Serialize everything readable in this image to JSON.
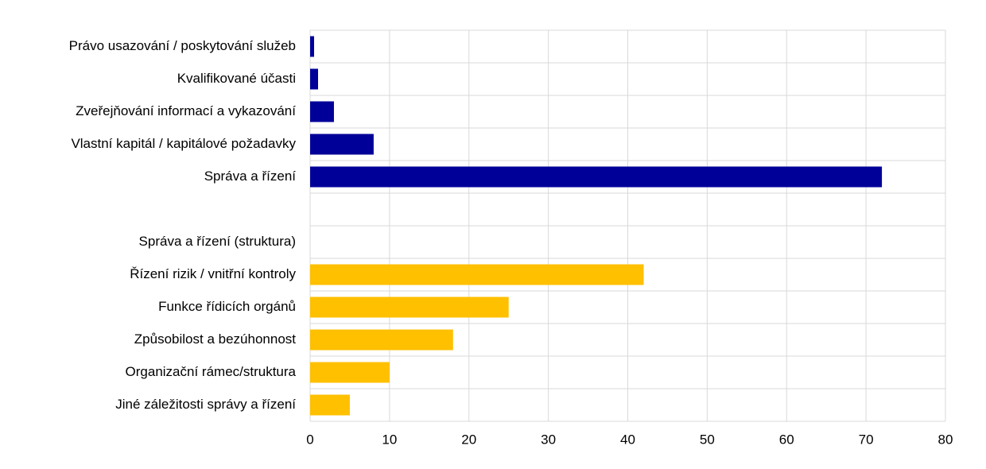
{
  "chart_data": {
    "type": "hbar",
    "categories": [
      "Právo usazování / poskytování služeb",
      "Kvalifikované účasti",
      "Zveřejňování informací a vykazování",
      "Vlastní kapitál / kapitálové požadavky",
      "Správa a řízení",
      null,
      "Správa a řízení (struktura)",
      "Řízení rizik / vnitřní kontroly",
      "Funkce řídicích orgánů",
      "Způsobilost a bezúhonnost",
      "Organizační rámec/struktura",
      "Jiné záležitosti správy a řízení"
    ],
    "values": [
      0.5,
      1,
      3,
      8,
      72,
      null,
      null,
      42,
      25,
      18,
      10,
      5
    ],
    "colors": [
      "#000099",
      "#000099",
      "#000099",
      "#000099",
      "#000099",
      null,
      null,
      "#ffc000",
      "#ffc000",
      "#ffc000",
      "#ffc000",
      "#ffc000"
    ],
    "xlim": [
      0,
      80
    ],
    "xticks": [
      0,
      10,
      20,
      30,
      40,
      50,
      60,
      70,
      80
    ],
    "grid": true
  }
}
